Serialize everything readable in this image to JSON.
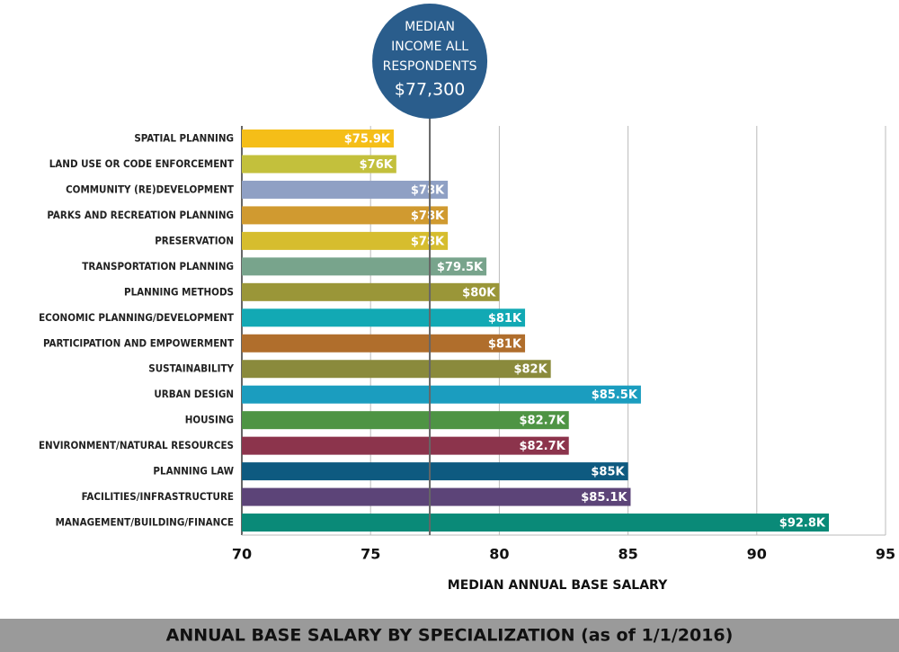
{
  "chart_data": {
    "type": "hbar",
    "title": "ANNUAL BASE SALARY BY SPECIALIZATION (as of 1/1/2016)",
    "x_label": "MEDIAN ANNUAL BASE SALARY",
    "categories": [
      "SPATIAL PLANNING",
      "LAND USE OR CODE ENFORCEMENT",
      "COMMUNITY (RE)DEVELOPMENT",
      "PARKS AND RECREATION PLANNING",
      "PRESERVATION",
      "TRANSPORTATION PLANNING",
      "PLANNING METHODS",
      "ECONOMIC PLANNING/DEVELOPMENT",
      "PARTICIPATION AND EMPOWERMENT",
      "SUSTAINABILITY",
      "URBAN DESIGN",
      "HOUSING",
      "ENVIRONMENT/NATURAL RESOURCES",
      "PLANNING LAW",
      "FACILITIES/INFRASTRUCTURE",
      "MANAGEMENT/BUILDING/FINANCE"
    ],
    "values": [
      75.9,
      76,
      78,
      78,
      78,
      79.5,
      80,
      81,
      81,
      82,
      85.5,
      82.7,
      82.7,
      85,
      85.1,
      92.8
    ],
    "value_labels": [
      "$75.9K",
      "$76K",
      "$78K",
      "$78K",
      "$78K",
      "$79.5K",
      "$80K",
      "$81K",
      "$81K",
      "$82K",
      "$85.5K",
      "$82.7K",
      "$82.7K",
      "$85K",
      "$85.1K",
      "$92.8K"
    ],
    "colors": [
      "#f5be18",
      "#c3c03c",
      "#8fa0c4",
      "#d09a30",
      "#d6bd2e",
      "#78a48c",
      "#9a9638",
      "#12a9b4",
      "#b06e2c",
      "#8a8a3c",
      "#1b9dbf",
      "#4e9444",
      "#8c344c",
      "#0e5a80",
      "#5c4478",
      "#0a8a78"
    ],
    "xlim": [
      70,
      95
    ],
    "xticks": [
      70,
      75,
      80,
      85,
      90,
      95
    ],
    "grid": true,
    "median": {
      "lines": [
        "MEDIAN",
        "INCOME ALL",
        "RESPONDENTS"
      ],
      "value": 77.3,
      "label": "$77,300",
      "color": "#2a5d8c"
    }
  }
}
